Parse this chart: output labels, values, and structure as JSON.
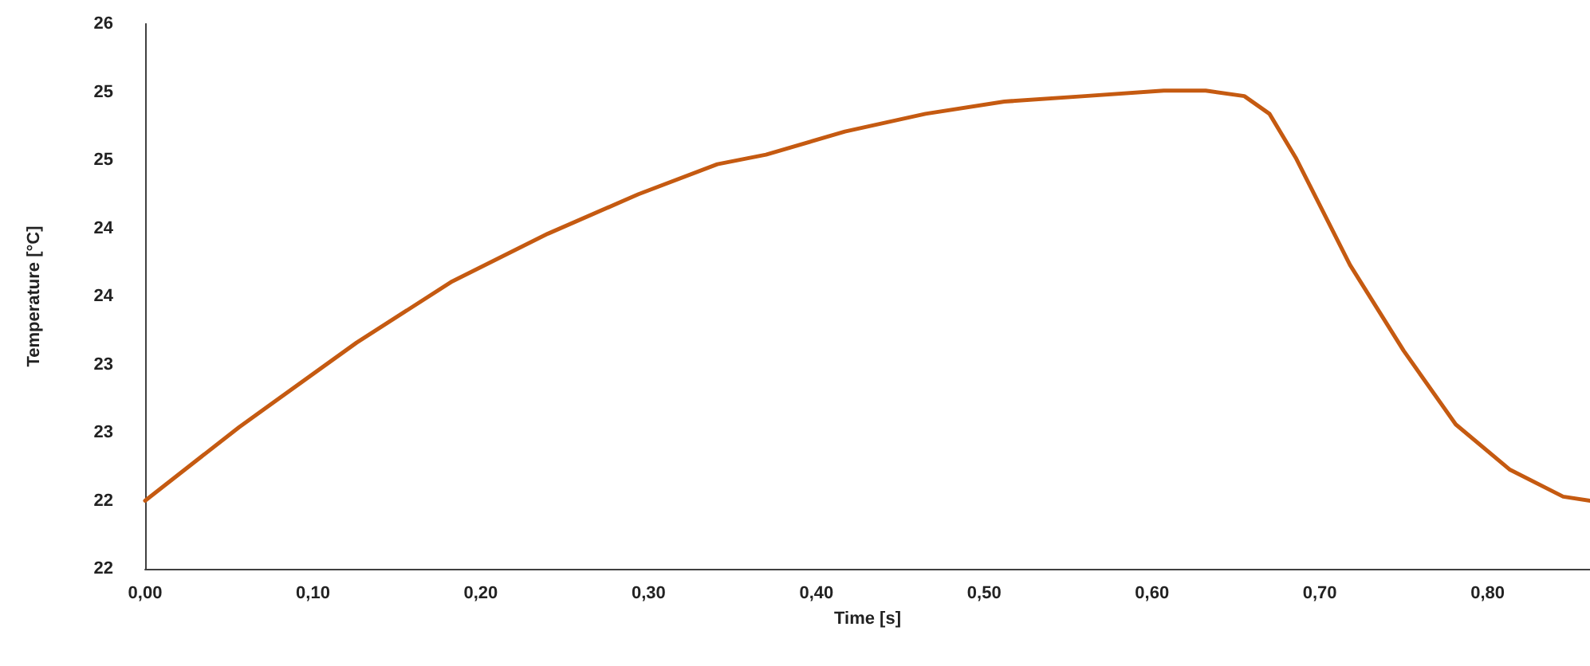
{
  "chart_data": {
    "type": "line",
    "xlabel": "Time [s]",
    "ylabel": "Temperature [°C]",
    "x": [
      0,
      0.056,
      0.126,
      0.183,
      0.24,
      0.294,
      0.341,
      0.37,
      0.417,
      0.465,
      0.512,
      0.56,
      0.607,
      0.632,
      0.655,
      0.67,
      0.686,
      0.718,
      0.75,
      0.781,
      0.813,
      0.845,
      0.861
    ],
    "series": [
      {
        "color": "#c55a11",
        "values": [
          22.4,
          22.94,
          23.56,
          24.01,
          24.36,
          24.65,
          24.87,
          24.94,
          25.11,
          25.24,
          25.33,
          25.37,
          25.41,
          25.41,
          25.37,
          25.24,
          24.91,
          24.13,
          23.5,
          22.96,
          22.63,
          22.43,
          22.4
        ]
      }
    ],
    "xlim": [
      0,
      0.861
    ],
    "xticks": [
      {
        "value": 0,
        "label": "0,00"
      },
      {
        "value": 0.1,
        "label": "0,10"
      },
      {
        "value": 0.2,
        "label": "0,20"
      },
      {
        "value": 0.3,
        "label": "0,30"
      },
      {
        "value": 0.4,
        "label": "0,40"
      },
      {
        "value": 0.5,
        "label": "0,50"
      },
      {
        "value": 0.6,
        "label": "0,60"
      },
      {
        "value": 0.7,
        "label": "0,70"
      },
      {
        "value": 0.8,
        "label": "0,80"
      }
    ],
    "ylim": [
      21.9,
      25.9
    ],
    "yticks": [
      {
        "value": 21.9,
        "label": "22"
      },
      {
        "value": 22.4,
        "label": "22"
      },
      {
        "value": 22.9,
        "label": "23"
      },
      {
        "value": 23.4,
        "label": "23"
      },
      {
        "value": 23.9,
        "label": "24"
      },
      {
        "value": 24.4,
        "label": "24"
      },
      {
        "value": 24.9,
        "label": "25"
      },
      {
        "value": 25.4,
        "label": "25"
      },
      {
        "value": 25.9,
        "label": "26"
      }
    ],
    "grid": false,
    "marker": "none",
    "line_style": "solid"
  }
}
